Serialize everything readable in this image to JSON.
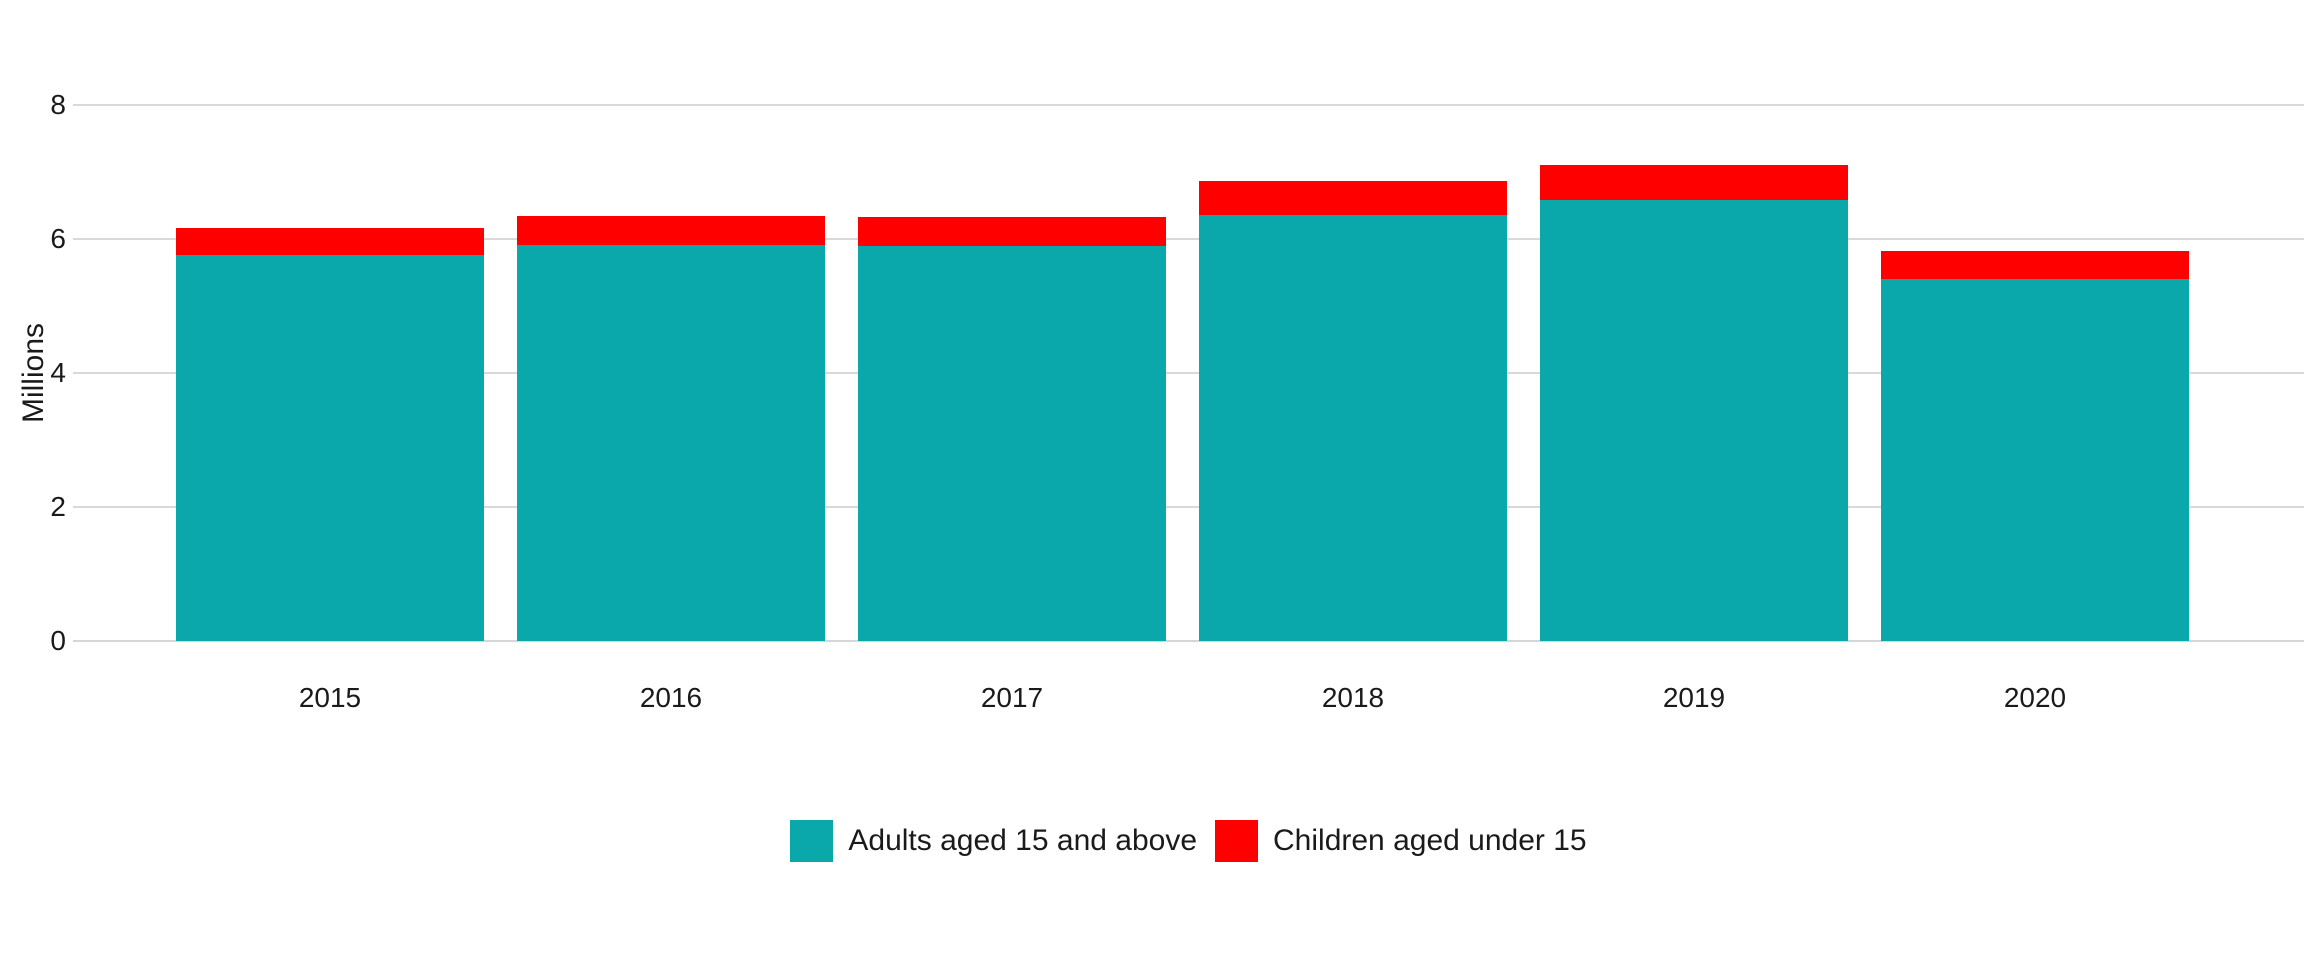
{
  "chart_data": {
    "type": "bar",
    "stacked": true,
    "title": "",
    "xlabel": "",
    "ylabel": "Millions",
    "categories": [
      "2015",
      "2016",
      "2017",
      "2018",
      "2019",
      "2020"
    ],
    "series": [
      {
        "name": "Adults aged 15 and above",
        "color": "#0aa8ab",
        "values": [
          5.76,
          5.91,
          5.9,
          6.36,
          6.58,
          5.4
        ]
      },
      {
        "name": "Children aged under 15",
        "color": "#fe0000",
        "values": [
          0.4,
          0.43,
          0.43,
          0.51,
          0.52,
          0.42
        ]
      }
    ],
    "ylim": [
      0,
      8
    ],
    "yticks": [
      0,
      2,
      4,
      6,
      8
    ],
    "grid": "horizontal",
    "legend_position": "bottom-center"
  },
  "palette": {
    "background": "#ffffff",
    "gridline": "#d9d9d9",
    "axis_line": "#d6d6d6",
    "text": "#1a1a1a"
  }
}
